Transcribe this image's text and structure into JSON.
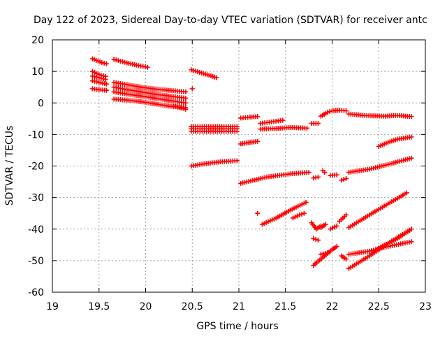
{
  "chart_data": {
    "type": "scatter",
    "title": "Day 122 of 2023, Sidereal Day-to-day VTEC variation (SDTVAR) for receiver antc",
    "xlabel": "GPS time / hours",
    "ylabel": "SDTVAR / TECUs",
    "xlim": [
      19,
      23
    ],
    "ylim": [
      -60,
      20
    ],
    "xticks": [
      "19",
      "19.5",
      "20",
      "20.5",
      "21",
      "21.5",
      "22",
      "22.5",
      "23"
    ],
    "yticks": [
      "20",
      "10",
      "0",
      "-10",
      "-20",
      "-30",
      "-40",
      "-50",
      "-60"
    ],
    "grid": true,
    "marker": "+",
    "color": "#ff0000",
    "series": [
      {
        "name": "track-01",
        "x": [
          19.43,
          19.53,
          19.58
        ],
        "y": [
          14.0,
          12.8,
          12.4
        ]
      },
      {
        "name": "track-02",
        "x": [
          19.43,
          19.5,
          19.57
        ],
        "y": [
          10.0,
          9.0,
          8.4
        ]
      },
      {
        "name": "track-03",
        "x": [
          19.43,
          19.5,
          19.58
        ],
        "y": [
          7.0,
          6.5,
          6.0
        ]
      },
      {
        "name": "track-04",
        "x": [
          19.43,
          19.5,
          19.58
        ],
        "y": [
          4.5,
          4.2,
          4.0
        ]
      },
      {
        "name": "track-05",
        "x": [
          19.43,
          19.5,
          19.57
        ],
        "y": [
          8.5,
          8.0,
          7.5
        ]
      },
      {
        "name": "track-06",
        "x": [
          19.66,
          19.8,
          19.9,
          20.02
        ],
        "y": [
          13.8,
          12.7,
          12.0,
          11.3
        ]
      },
      {
        "name": "track-07",
        "x": [
          19.66,
          19.8,
          19.95,
          20.1,
          20.25,
          20.43
        ],
        "y": [
          6.5,
          5.8,
          5.0,
          4.4,
          4.0,
          3.5
        ]
      },
      {
        "name": "track-08",
        "x": [
          19.66,
          19.8,
          19.95,
          20.1,
          20.25,
          20.43
        ],
        "y": [
          5.0,
          4.2,
          3.5,
          2.8,
          2.2,
          1.5
        ]
      },
      {
        "name": "track-09",
        "x": [
          19.66,
          19.8,
          19.95,
          20.1,
          20.25,
          20.43
        ],
        "y": [
          3.5,
          2.8,
          2.2,
          1.5,
          0.8,
          0.0
        ]
      },
      {
        "name": "track-10",
        "x": [
          19.66,
          19.8,
          19.95,
          20.1,
          20.25,
          20.43
        ],
        "y": [
          1.2,
          0.9,
          0.4,
          -0.3,
          -1.0,
          -1.5
        ]
      },
      {
        "name": "track-11",
        "x": [
          20.3,
          20.37,
          20.43
        ],
        "y": [
          -1.0,
          -1.5,
          -2.0
        ]
      },
      {
        "name": "track-12",
        "x": [
          20.49,
          20.6,
          20.72,
          20.76
        ],
        "y": [
          10.5,
          9.5,
          8.4,
          8.0
        ]
      },
      {
        "name": "track-13",
        "x": [
          20.5
        ],
        "y": [
          4.5
        ]
      },
      {
        "name": "track-14",
        "x": [
          20.49,
          20.7,
          20.98
        ],
        "y": [
          -7.5,
          -7.5,
          -7.5
        ]
      },
      {
        "name": "track-15",
        "x": [
          20.49,
          20.7,
          20.98
        ],
        "y": [
          -9.0,
          -9.0,
          -9.0
        ]
      },
      {
        "name": "track-16",
        "x": [
          20.49,
          20.7,
          20.98
        ],
        "y": [
          -8.2,
          -8.2,
          -8.2
        ]
      },
      {
        "name": "track-17",
        "x": [
          20.49,
          20.65,
          20.8,
          20.98
        ],
        "y": [
          -20.0,
          -19.2,
          -18.7,
          -18.3
        ]
      },
      {
        "name": "track-18",
        "x": [
          21.02,
          21.12,
          21.2
        ],
        "y": [
          -4.8,
          -4.5,
          -4.3
        ]
      },
      {
        "name": "track-19",
        "x": [
          21.02,
          21.12,
          21.2
        ],
        "y": [
          -13.0,
          -12.5,
          -12.2
        ]
      },
      {
        "name": "track-20",
        "x": [
          21.02,
          21.3,
          21.55,
          21.75
        ],
        "y": [
          -25.5,
          -23.5,
          -22.5,
          -22.0
        ]
      },
      {
        "name": "track-21",
        "x": [
          21.23,
          21.35,
          21.47
        ],
        "y": [
          -6.5,
          -6.0,
          -5.5
        ]
      },
      {
        "name": "track-22",
        "x": [
          21.23,
          21.4,
          21.55,
          21.73
        ],
        "y": [
          -8.3,
          -8.1,
          -7.8,
          -8.0
        ]
      },
      {
        "name": "track-23",
        "x": [
          21.78,
          21.85
        ],
        "y": [
          -6.5,
          -6.5
        ]
      },
      {
        "name": "track-24",
        "x": [
          21.88,
          21.95,
          22.0,
          22.08,
          22.15
        ],
        "y": [
          -4.2,
          -3.0,
          -2.5,
          -2.3,
          -2.5
        ]
      },
      {
        "name": "track-25",
        "x": [
          22.18,
          22.35,
          22.55,
          22.7,
          22.85
        ],
        "y": [
          -3.5,
          -4.0,
          -4.2,
          -4.0,
          -4.3
        ]
      },
      {
        "name": "track-26",
        "x": [
          22.5,
          22.6,
          22.7,
          22.85
        ],
        "y": [
          -13.8,
          -12.5,
          -11.5,
          -10.8
        ]
      },
      {
        "name": "track-27",
        "x": [
          21.8,
          21.85
        ],
        "y": [
          -23.8,
          -23.5
        ]
      },
      {
        "name": "track-28",
        "x": [
          21.9,
          21.92
        ],
        "y": [
          -21.5,
          -22.0
        ]
      },
      {
        "name": "track-29",
        "x": [
          21.98,
          22.05
        ],
        "y": [
          -23.0,
          -22.8
        ]
      },
      {
        "name": "track-30",
        "x": [
          22.1,
          22.15
        ],
        "y": [
          -24.5,
          -24.0
        ]
      },
      {
        "name": "track-31",
        "x": [
          22.18,
          22.4,
          22.6,
          22.85
        ],
        "y": [
          -22.0,
          -21.0,
          -19.5,
          -17.5
        ]
      },
      {
        "name": "track-32",
        "x": [
          21.2
        ],
        "y": [
          -35.0
        ]
      },
      {
        "name": "track-33",
        "x": [
          21.25,
          21.4,
          21.55,
          21.72
        ],
        "y": [
          -38.5,
          -36.5,
          -34.0,
          -31.5
        ]
      },
      {
        "name": "track-34",
        "x": [
          21.58,
          21.65,
          21.7
        ],
        "y": [
          -36.5,
          -35.5,
          -35.0
        ]
      },
      {
        "name": "track-35",
        "x": [
          21.78,
          21.83,
          21.88
        ],
        "y": [
          -38.0,
          -40.0,
          -39.0
        ]
      },
      {
        "name": "track-36",
        "x": [
          21.88,
          21.93
        ],
        "y": [
          -39.5,
          -38.5
        ]
      },
      {
        "name": "track-37",
        "x": [
          21.98,
          22.05
        ],
        "y": [
          -40.0,
          -39.0
        ]
      },
      {
        "name": "track-38",
        "x": [
          22.08,
          22.15
        ],
        "y": [
          -37.5,
          -35.5
        ]
      },
      {
        "name": "track-39",
        "x": [
          21.8,
          21.85
        ],
        "y": [
          -43.0,
          -43.5
        ]
      },
      {
        "name": "track-40",
        "x": [
          22.18,
          22.4,
          22.6,
          22.8
        ],
        "y": [
          -39.5,
          -35.5,
          -32.0,
          -28.5
        ]
      },
      {
        "name": "track-41",
        "x": [
          21.8,
          21.9,
          22.0,
          22.05
        ],
        "y": [
          -51.5,
          -49.0,
          -46.5,
          -45.5
        ]
      },
      {
        "name": "track-42",
        "x": [
          21.88,
          21.95
        ],
        "y": [
          -48.0,
          -47.5
        ]
      },
      {
        "name": "track-43",
        "x": [
          22.1,
          22.15
        ],
        "y": [
          -48.5,
          -49.5
        ]
      },
      {
        "name": "track-44",
        "x": [
          22.18,
          22.4,
          22.6,
          22.85
        ],
        "y": [
          -48.0,
          -47.0,
          -45.5,
          -44.0
        ]
      },
      {
        "name": "track-45",
        "x": [
          22.18,
          22.4,
          22.6,
          22.85
        ],
        "y": [
          -52.5,
          -48.5,
          -44.5,
          -40.0
        ]
      },
      {
        "name": "track-46",
        "x": [
          22.5,
          22.7,
          22.85
        ],
        "y": [
          -46.0,
          -43.0,
          -40.0
        ]
      }
    ]
  }
}
